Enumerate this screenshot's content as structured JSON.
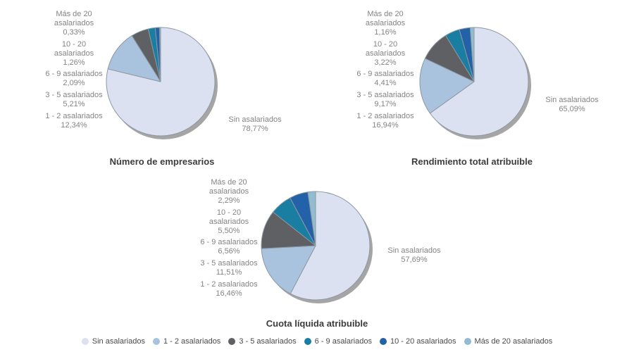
{
  "palette": {
    "slice_colors": [
      "#dce1f1",
      "#a9c3df",
      "#5e6063",
      "#1a7ea3",
      "#2362a9",
      "#92bcd0"
    ],
    "slice_stroke": "#8d97a0",
    "shadow_color": "#9b9b9b",
    "label_text_color": "#848484",
    "title_text_color": "#3c3c3c",
    "legend_text_color": "#4a4a4a"
  },
  "legend": {
    "items": [
      {
        "label": "Sin asalariados"
      },
      {
        "label": "1 - 2 asalariados"
      },
      {
        "label": "3 - 5 asalariados"
      },
      {
        "label": "6 - 9 asalariados"
      },
      {
        "label": "10 - 20 asalariados"
      },
      {
        "label": "Más de 20 asalariados"
      }
    ]
  },
  "chart_data": [
    {
      "type": "pie",
      "title": "Número de empresarios",
      "categories": [
        "Sin asalariados",
        "1 - 2 asalariados",
        "3 - 5 asalariados",
        "6 - 9 asalariados",
        "10 - 20 asalariados",
        "Más de 20 asalariados"
      ],
      "values": [
        78.77,
        12.34,
        5.21,
        2.09,
        1.26,
        0.33
      ],
      "value_labels": [
        "78,77%",
        "12,34%",
        "5,21%",
        "2,09%",
        "1,26%",
        "0,33%"
      ],
      "legend_position": "bottom-shared",
      "callouts": {
        "mas_de_20": "Más de 20\nasalariados\n0,33%",
        "de_10_a_20": "10 - 20\nasalariados\n1,26%",
        "de_6_a_9": "6 - 9 asalariados\n2,09%",
        "de_3_a_5": "3 - 5 asalariados\n5,21%",
        "de_1_a_2": "1 - 2 asalariados\n12,34%",
        "sin_asalariados": "Sin asalariados\n78,77%"
      }
    },
    {
      "type": "pie",
      "title": "Rendimiento total atribuible",
      "categories": [
        "Sin asalariados",
        "1 - 2 asalariados",
        "3 - 5 asalariados",
        "6 - 9 asalariados",
        "10 - 20 asalariados",
        "Más de 20 asalariados"
      ],
      "values": [
        65.09,
        16.94,
        9.17,
        4.41,
        3.22,
        1.16
      ],
      "value_labels": [
        "65,09%",
        "16,94%",
        "9,17%",
        "4,41%",
        "3,22%",
        "1,16%"
      ],
      "legend_position": "bottom-shared",
      "callouts": {
        "mas_de_20": "Más de 20\nasalariados\n1,16%",
        "de_10_a_20": "10 - 20\nasalariados\n3,22%",
        "de_6_a_9": "6 - 9 asalariados\n4,41%",
        "de_3_a_5": "3 - 5 asalariados\n9,17%",
        "de_1_a_2": "1 - 2 asalariados\n16,94%",
        "sin_asalariados": "Sin asalariados\n65,09%"
      }
    },
    {
      "type": "pie",
      "title": "Cuota líquida atribuible",
      "categories": [
        "Sin asalariados",
        "1 - 2 asalariados",
        "3 - 5 asalariados",
        "6 - 9 asalariados",
        "10 - 20 asalariados",
        "Más de 20 asalariados"
      ],
      "values": [
        57.69,
        16.46,
        11.51,
        6.56,
        5.5,
        2.29
      ],
      "value_labels": [
        "57,69%",
        "16,46%",
        "11,51%",
        "6,56%",
        "5,50%",
        "2,29%"
      ],
      "legend_position": "bottom-shared",
      "callouts": {
        "mas_de_20": "Más de 20\nasalariados\n2,29%",
        "de_10_a_20": "10 - 20\nasalariados\n5,50%",
        "de_6_a_9": "6 - 9 asalariados\n6,56%",
        "de_3_a_5": "3 - 5 asalariados\n11,51%",
        "de_1_a_2": "1 - 2 asalariados\n16,46%",
        "sin_asalariados": "Sin asalariados\n57,69%"
      }
    }
  ]
}
